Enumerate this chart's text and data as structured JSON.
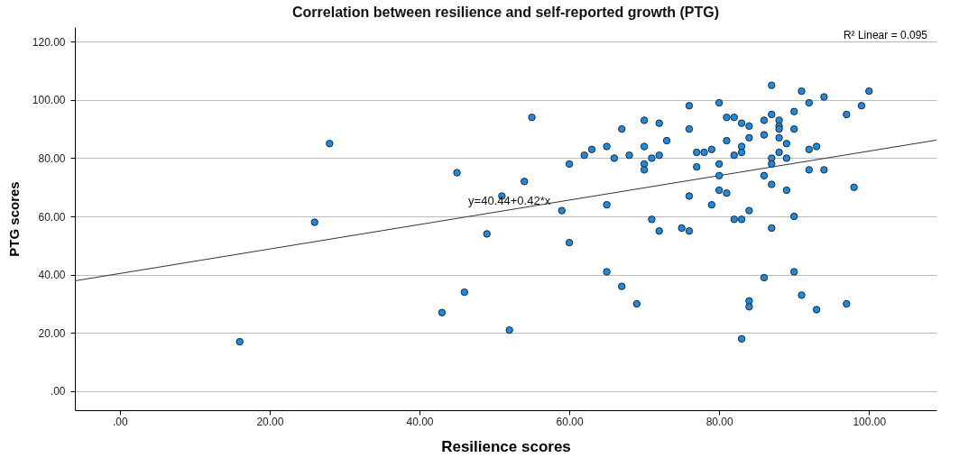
{
  "chart_data": {
    "type": "scatter",
    "title": "Correlation between resilience and self-reported growth (PTG)",
    "xlabel": "Resilience scores",
    "ylabel": "PTG scores",
    "xlim": [
      -6,
      109
    ],
    "ylim": [
      -6.5,
      125
    ],
    "xticks": [
      {
        "value": 0,
        "label": ".00"
      },
      {
        "value": 20,
        "label": "20.00"
      },
      {
        "value": 40,
        "label": "40.00"
      },
      {
        "value": 60,
        "label": "60.00"
      },
      {
        "value": 80,
        "label": "80.00"
      },
      {
        "value": 100,
        "label": "100.00"
      }
    ],
    "yticks": [
      {
        "value": 0,
        "label": ".00"
      },
      {
        "value": 20,
        "label": "20.00"
      },
      {
        "value": 40,
        "label": "40.00"
      },
      {
        "value": 60,
        "label": "60.00"
      },
      {
        "value": 80,
        "label": "80.00"
      },
      {
        "value": 100,
        "label": "100.00"
      },
      {
        "value": 120,
        "label": "120.00"
      }
    ],
    "grid": "y",
    "series": [
      {
        "color": "#1b8ae0",
        "marker": "circle",
        "x": [
          16,
          26,
          28,
          43,
          45,
          46,
          49,
          51,
          52,
          54,
          55,
          59,
          60,
          60,
          62,
          63,
          65,
          65,
          65,
          66,
          67,
          67,
          68,
          69,
          70,
          70,
          70,
          70,
          71,
          71,
          72,
          72,
          72,
          73,
          75,
          76,
          76,
          76,
          76,
          77,
          77,
          78,
          79,
          79,
          80,
          80,
          80,
          80,
          81,
          81,
          81,
          82,
          82,
          82,
          83,
          83,
          83,
          83,
          83,
          84,
          84,
          84,
          84,
          84,
          86,
          86,
          86,
          86,
          87,
          87,
          87,
          87,
          87,
          87,
          88,
          88,
          88,
          88,
          88,
          89,
          89,
          89,
          90,
          90,
          90,
          90,
          91,
          91,
          92,
          92,
          92,
          93,
          93,
          94,
          94,
          97,
          97,
          98,
          99,
          100
        ],
        "values": [
          17,
          58,
          85,
          27,
          75,
          34,
          54,
          67,
          21,
          72,
          94,
          62,
          51,
          78,
          81,
          83,
          84,
          64,
          41,
          80,
          90,
          36,
          81,
          30,
          93,
          84,
          78,
          76,
          59,
          80,
          81,
          92,
          55,
          86,
          56,
          98,
          90,
          67,
          55,
          82,
          77,
          82,
          83,
          64,
          99,
          78,
          74,
          69,
          94,
          86,
          68,
          94,
          81,
          59,
          92,
          84,
          82,
          59,
          18,
          91,
          87,
          62,
          31,
          29,
          93,
          88,
          74,
          39,
          105,
          95,
          80,
          78,
          71,
          56,
          93,
          91,
          90,
          87,
          82,
          85,
          80,
          69,
          96,
          90,
          60,
          41,
          103,
          33,
          99,
          83,
          76,
          84,
          28,
          101,
          76,
          95,
          30,
          70,
          98,
          103
        ]
      },
      {
        "type": "line",
        "color": "#333333",
        "line_style": "solid",
        "marker": "none",
        "x": [
          -6,
          109
        ],
        "values": [
          37.9,
          86.2
        ]
      }
    ],
    "annotations": [
      {
        "text": "y=40.44+0.42*x",
        "x": 52,
        "y": 62
      },
      "R² Linear = 0.095"
    ]
  }
}
